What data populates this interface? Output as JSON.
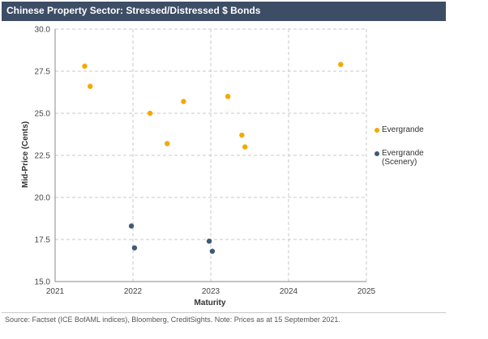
{
  "header": {
    "title": "Chinese Property Sector: Stressed/Distressed $ Bonds"
  },
  "footer": {
    "source": "Source: Factset (ICE BofAML indices), Bloomberg, CreditSights. Note: Prices as at 15 September 2021."
  },
  "chart_data": {
    "type": "scatter",
    "title": "Chinese Property Sector: Stressed/Distressed $ Bonds",
    "xlabel": "Maturity",
    "ylabel": "Mid-Price (Cents)",
    "xlim": [
      2021,
      2025
    ],
    "ylim": [
      15.0,
      30.0
    ],
    "x_ticks": [
      "2021",
      "2022",
      "2023",
      "2024",
      "2025"
    ],
    "y_ticks": [
      "15.0",
      "17.5",
      "20.0",
      "22.5",
      "25.0",
      "27.5",
      "30.0"
    ],
    "grid": true,
    "legend_position": "right",
    "series": [
      {
        "name": "Evergrande",
        "color": "#f5a800",
        "points": [
          {
            "x": 2021.38,
            "y": 27.8
          },
          {
            "x": 2021.45,
            "y": 26.6
          },
          {
            "x": 2022.22,
            "y": 25.0
          },
          {
            "x": 2022.44,
            "y": 23.2
          },
          {
            "x": 2022.65,
            "y": 25.7
          },
          {
            "x": 2023.22,
            "y": 26.0
          },
          {
            "x": 2023.4,
            "y": 23.7
          },
          {
            "x": 2023.44,
            "y": 23.0
          },
          {
            "x": 2024.67,
            "y": 27.9
          }
        ]
      },
      {
        "name": "Evergrande\n(Scenery)",
        "color": "#3d5a78",
        "points": [
          {
            "x": 2021.98,
            "y": 18.3
          },
          {
            "x": 2022.02,
            "y": 17.0
          },
          {
            "x": 2022.98,
            "y": 17.4
          },
          {
            "x": 2023.02,
            "y": 16.8
          }
        ]
      }
    ]
  }
}
